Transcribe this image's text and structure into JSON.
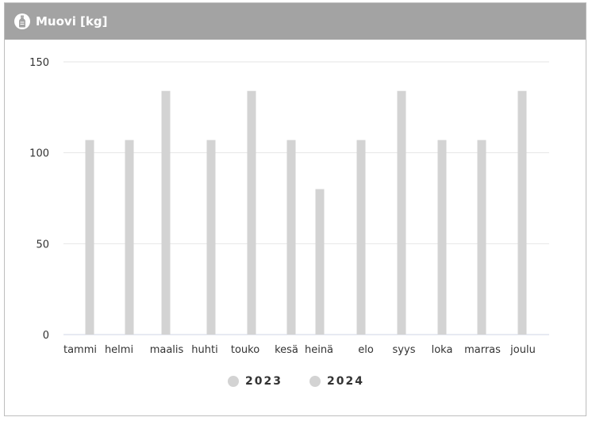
{
  "panel": {
    "title": "Muovi [kg]",
    "icon": "bottle-icon",
    "header_color": "#a3a3a3"
  },
  "chart_data": {
    "type": "bar",
    "title": "Muovi [kg]",
    "xlabel": "",
    "ylabel": "",
    "categories": [
      "tammi",
      "helmi",
      "maalis",
      "huhti",
      "touko",
      "kesä",
      "heinä",
      "elo",
      "syys",
      "loka",
      "marras",
      "joulu"
    ],
    "series": [
      {
        "name": "2023",
        "values": [
          null,
          null,
          null,
          null,
          null,
          null,
          80,
          null,
          null,
          null,
          null,
          null
        ]
      },
      {
        "name": "2024",
        "values": [
          107,
          107,
          134,
          107,
          134,
          107,
          null,
          107,
          134,
          107,
          107,
          134
        ]
      }
    ],
    "ylim": [
      0,
      150
    ],
    "yticks": [
      0,
      50,
      100,
      150
    ],
    "grid": true,
    "legend_position": "bottom",
    "bar_color": "#d3d3d3",
    "grid_color": "#e6e6e6"
  },
  "legend": {
    "items": [
      {
        "label": "2023",
        "color": "#d3d3d3"
      },
      {
        "label": "2024",
        "color": "#d3d3d3"
      }
    ]
  }
}
